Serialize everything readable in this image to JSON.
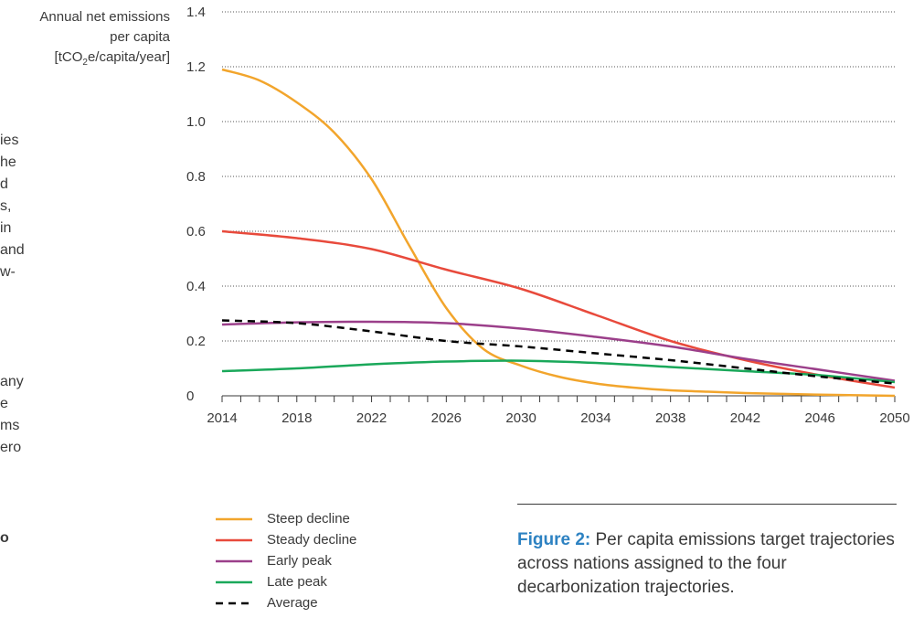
{
  "left_fragments": [
    "ies",
    "he",
    "d",
    "s,",
    "in",
    "and",
    "w-",
    "any",
    "e",
    "ms",
    "ero",
    "o"
  ],
  "ylabel_lines": [
    "Annual net emissions",
    "per capita",
    "[tCO",
    "2",
    "e/capita/year]"
  ],
  "caption": {
    "label": "Figure 2:",
    "text": " Per capita emissions target trajectories across nations assigned to the four decarbonization trajectories."
  },
  "chart_data": {
    "type": "line",
    "ylabel": "Annual net emissions per capita [tCO2e/capita/year]",
    "xlim": [
      2014,
      2050
    ],
    "ylim": [
      0,
      1.4
    ],
    "x_ticks": [
      2014,
      2018,
      2022,
      2026,
      2030,
      2034,
      2038,
      2042,
      2046,
      2050
    ],
    "y_ticks": [
      {
        "value": 0,
        "label": "0"
      },
      {
        "value": 0.2,
        "label": "0.2"
      },
      {
        "value": 0.4,
        "label": "0.4"
      },
      {
        "value": 0.6,
        "label": "0.6"
      },
      {
        "value": 0.8,
        "label": "0.8"
      },
      {
        "value": 1.0,
        "label": "1.0"
      },
      {
        "value": 1.2,
        "label": "1.2"
      },
      {
        "value": 1.4,
        "label": "1.4"
      }
    ],
    "grid": "horizontal dotted",
    "legend_position": "bottom-left",
    "series": [
      {
        "name": "Steep decline",
        "color": "#f2a52c",
        "dash": "solid",
        "points": [
          [
            2014,
            1.19
          ],
          [
            2016,
            1.15
          ],
          [
            2018,
            1.07
          ],
          [
            2020,
            0.96
          ],
          [
            2022,
            0.79
          ],
          [
            2024,
            0.55
          ],
          [
            2026,
            0.32
          ],
          [
            2028,
            0.17
          ],
          [
            2030,
            0.11
          ],
          [
            2032,
            0.07
          ],
          [
            2034,
            0.045
          ],
          [
            2036,
            0.03
          ],
          [
            2038,
            0.02
          ],
          [
            2040,
            0.015
          ],
          [
            2042,
            0.01
          ],
          [
            2044,
            0.007
          ],
          [
            2046,
            0.004
          ],
          [
            2048,
            0.002
          ],
          [
            2050,
            0.0
          ]
        ]
      },
      {
        "name": "Steady decline",
        "color": "#e84a3c",
        "dash": "solid",
        "points": [
          [
            2014,
            0.6
          ],
          [
            2018,
            0.575
          ],
          [
            2022,
            0.535
          ],
          [
            2026,
            0.46
          ],
          [
            2030,
            0.39
          ],
          [
            2034,
            0.295
          ],
          [
            2038,
            0.2
          ],
          [
            2042,
            0.13
          ],
          [
            2046,
            0.075
          ],
          [
            2050,
            0.03
          ]
        ]
      },
      {
        "name": "Early peak",
        "color": "#9b3f8a",
        "dash": "solid",
        "points": [
          [
            2014,
            0.26
          ],
          [
            2018,
            0.268
          ],
          [
            2022,
            0.27
          ],
          [
            2026,
            0.265
          ],
          [
            2030,
            0.245
          ],
          [
            2034,
            0.215
          ],
          [
            2038,
            0.18
          ],
          [
            2042,
            0.135
          ],
          [
            2046,
            0.095
          ],
          [
            2050,
            0.055
          ]
        ]
      },
      {
        "name": "Late peak",
        "color": "#1aa85a",
        "dash": "solid",
        "points": [
          [
            2014,
            0.09
          ],
          [
            2018,
            0.1
          ],
          [
            2022,
            0.115
          ],
          [
            2026,
            0.125
          ],
          [
            2030,
            0.128
          ],
          [
            2034,
            0.12
          ],
          [
            2038,
            0.105
          ],
          [
            2042,
            0.09
          ],
          [
            2046,
            0.075
          ],
          [
            2050,
            0.05
          ]
        ]
      },
      {
        "name": "Average",
        "color": "#000000",
        "dash": "dashed",
        "points": [
          [
            2014,
            0.275
          ],
          [
            2018,
            0.265
          ],
          [
            2022,
            0.235
          ],
          [
            2026,
            0.2
          ],
          [
            2030,
            0.18
          ],
          [
            2034,
            0.155
          ],
          [
            2038,
            0.13
          ],
          [
            2042,
            0.1
          ],
          [
            2046,
            0.07
          ],
          [
            2050,
            0.045
          ]
        ]
      }
    ]
  }
}
